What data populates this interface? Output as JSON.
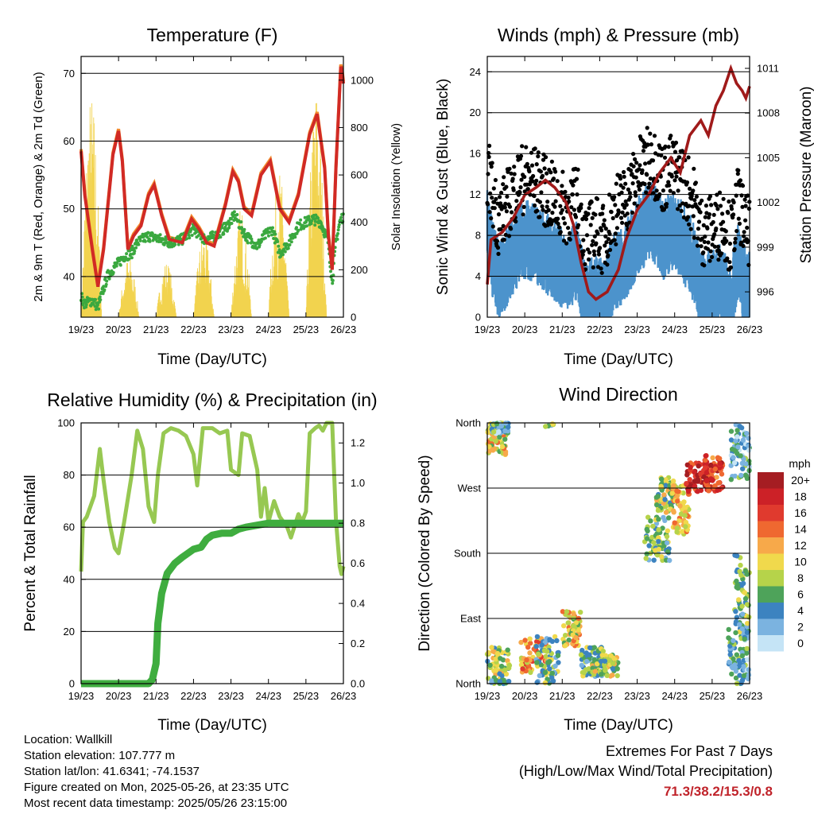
{
  "charts": [
    {
      "type": "line",
      "title": "Temperature (F)",
      "xlabel": "Time (Day/UTC)",
      "ylabel_left": "2m & 9m T (Red, Orange) & 2m Td (Green)",
      "ylabel_right": "Solar Insolation (Yellow)",
      "xticks": [
        "19/23",
        "20/23",
        "21/23",
        "22/23",
        "23/23",
        "24/23",
        "25/23",
        "26/23"
      ],
      "yticks_left": [
        40,
        50,
        60,
        70
      ],
      "yticks_right": [
        0,
        200,
        400,
        600,
        800,
        1000
      ],
      "ylim_left": [
        34,
        72.5
      ],
      "ylim_right": [
        0,
        1100
      ],
      "grid_y": [
        40,
        50,
        60,
        70
      ]
    },
    {
      "type": "line",
      "title": "Winds (mph) & Pressure (mb)",
      "xlabel": "Time (Day/UTC)",
      "ylabel_left": "Sonic Wind & Gust (Blue, Black)",
      "ylabel_right": "Station Pressure (Maroon)",
      "xticks": [
        "19/23",
        "20/23",
        "21/23",
        "22/23",
        "23/23",
        "24/23",
        "25/23",
        "26/23"
      ],
      "yticks_left": [
        0,
        4,
        8,
        12,
        16,
        20,
        24
      ],
      "yticks_right": [
        996,
        999,
        1002,
        1005,
        1008,
        1011
      ],
      "ylim_left": [
        0,
        25.5
      ],
      "ylim_right": [
        994.3,
        1011.8
      ],
      "grid_y": [
        4,
        8,
        12,
        16,
        20,
        24
      ]
    },
    {
      "type": "line",
      "title": "Relative Humidity (%) & Precipitation (in)",
      "xlabel": "Time (Day/UTC)",
      "ylabel_left": "Percent & Total Rainfall",
      "xticks": [
        "19/23",
        "20/23",
        "21/23",
        "22/23",
        "23/23",
        "24/23",
        "25/23",
        "26/23"
      ],
      "yticks_left": [
        0,
        20,
        40,
        60,
        80,
        100
      ],
      "yticks_right": [
        "0.0",
        "0.2",
        "0.4",
        "0.6",
        "0.8",
        "1.0",
        "1.2"
      ],
      "ylim_left": [
        0,
        100
      ],
      "ylim_right": [
        0,
        1.3
      ],
      "grid_y": [
        20,
        40,
        60,
        80
      ],
      "series": [
        {
          "color": "#97c852",
          "x": [
            0,
            0.05,
            0.15,
            0.35,
            0.5,
            0.6,
            0.75,
            0.9,
            1.0,
            1.15,
            1.35,
            1.5,
            1.65,
            1.8,
            1.95,
            2.05,
            2.2,
            2.4,
            2.6,
            2.8,
            3.0,
            3.1,
            3.25,
            3.5,
            3.7,
            3.9,
            4.0,
            4.2,
            4.3,
            4.5,
            4.7,
            4.8,
            4.9,
            5.0,
            5.15,
            5.3,
            5.5,
            5.6,
            5.8,
            5.9,
            6.0,
            6.1,
            6.25,
            6.35,
            6.45,
            6.55,
            6.7,
            6.8,
            6.9,
            6.95,
            7.0
          ],
          "y": [
            43,
            62,
            64,
            72,
            90,
            78,
            62,
            52,
            50,
            62,
            80,
            97,
            90,
            68,
            62,
            80,
            96,
            98,
            97,
            95,
            88,
            76,
            98,
            98,
            96,
            97,
            82,
            80,
            96,
            95,
            82,
            64,
            75,
            62,
            70,
            64,
            60,
            56,
            65,
            62,
            66,
            96,
            98,
            99,
            97,
            100,
            100,
            63,
            45,
            42,
            45
          ]
        },
        {
          "color": "#3fad3f",
          "x": [
            0,
            1.8,
            1.9,
            2.0,
            2.05,
            2.15,
            2.3,
            2.5,
            2.7,
            2.85,
            3.0,
            3.2,
            3.35,
            3.5,
            3.75,
            4.0,
            4.2,
            4.4,
            4.7,
            5.0,
            6.0,
            7.0
          ],
          "y": [
            0,
            0,
            0.02,
            0.1,
            0.3,
            0.45,
            0.55,
            0.6,
            0.63,
            0.65,
            0.67,
            0.68,
            0.72,
            0.74,
            0.75,
            0.75,
            0.77,
            0.78,
            0.79,
            0.8,
            0.8,
            0.8
          ],
          "axis": "right"
        }
      ]
    },
    {
      "type": "scatter",
      "title": "Wind Direction",
      "xlabel": "Time (Day/UTC)",
      "ylabel_left": "Direction (Colored By Speed)",
      "xticks": [
        "19/23",
        "20/23",
        "21/23",
        "22/23",
        "23/23",
        "24/23",
        "25/23",
        "26/23"
      ],
      "yticks_left": [
        "North",
        "East",
        "South",
        "West",
        "North"
      ],
      "grid_y": [
        "East",
        "South",
        "West"
      ],
      "colorbar": {
        "unit": "mph",
        "labels": [
          "20+",
          "18",
          "16",
          "14",
          "12",
          "10",
          "8",
          "6",
          "4",
          "2",
          "0"
        ],
        "colors": [
          "#a51d22",
          "#cc2127",
          "#e03a2e",
          "#ef6830",
          "#f7a94a",
          "#f0d94c",
          "#b6d34a",
          "#4ea35a",
          "#3c83c0",
          "#7bb3e0",
          "#c5e4f6"
        ]
      }
    }
  ],
  "info": {
    "location": "Location: Wallkill",
    "elevation": "Station elevation: 107.777 m",
    "latlon": "Station lat/lon: 41.6341; -74.1537",
    "created": "Figure created on Mon, 2025-05-26, at 23:35 UTC",
    "recent": "Most recent data timestamp: 2025/05/26 23:15:00"
  },
  "extremes": {
    "title": "Extremes For Past 7 Days",
    "subtitle": "(High/Low/Max Wind/Total Precipitation)",
    "values": "71.3/38.2/15.3/0.8"
  }
}
